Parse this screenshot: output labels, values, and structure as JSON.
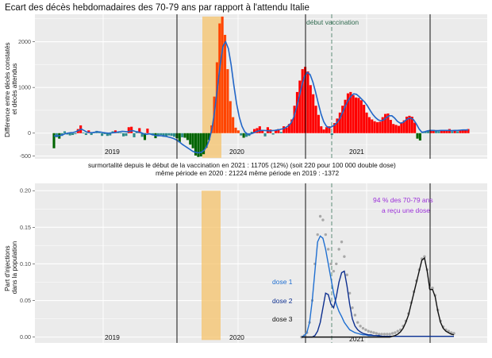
{
  "title": "Ecart des décès hebdomadaires des 70-79 ans par rapport à l'attendu Italie",
  "colors": {
    "panel_bg": "#ebebeb",
    "grid": "#ffffff",
    "bar_pos": "#ff0000",
    "bar_pos_2020": "#ff4500",
    "bar_neg": "#006400",
    "bar_small": "#2e8b8b",
    "smooth": "#2166c8",
    "highlight": "#f5c36b",
    "vacc_line": "#5f8c78",
    "vacc_text": "#2f6a4f",
    "dose1": "#1f6fd1",
    "dose2": "#0d2f8f",
    "dose3": "#111111",
    "total_dots": "#a8a8a8",
    "pct_text": "#9b30d9"
  },
  "chart_data": [
    {
      "type": "bar",
      "ylabel": "Différence entre décès constatés\net décès attendus",
      "ylim": [
        -560,
        2600
      ],
      "yticks": [
        -500,
        0,
        1000,
        2000
      ],
      "ytick_labels": [
        "-500",
        "0",
        "1000",
        "2000"
      ],
      "year_labels": [
        "2019",
        "2020",
        "2021"
      ],
      "vaccination_label": "début vaccination",
      "stats_line1": "surmortalité depuis le début de la vaccination en 2021 : 11705  (12%)           (soit 220 pour 100 000 double dose)",
      "stats_line2": "même période en 2020 : 21224             même période en 2019 : -1372",
      "weekly_values": [
        -330,
        -90,
        -120,
        -60,
        40,
        -30,
        -50,
        -40,
        -20,
        90,
        170,
        10,
        -40,
        60,
        -40,
        30,
        50,
        30,
        -60,
        -20,
        -60,
        -50,
        40,
        60,
        30,
        10,
        -70,
        -60,
        130,
        140,
        -90,
        40,
        110,
        -80,
        -150,
        100,
        -20,
        -50,
        -110,
        -60,
        -40,
        -80,
        -70,
        -50,
        -60,
        -80,
        -110,
        -200,
        -90,
        -100,
        -150,
        -250,
        -330,
        -490,
        -520,
        -510,
        -460,
        -320,
        -150,
        170,
        800,
        1550,
        2400,
        2550,
        2150,
        1400,
        700,
        350,
        120,
        60,
        -50,
        -100,
        -80,
        -60,
        30,
        90,
        110,
        150,
        60,
        -70,
        130,
        80,
        -30,
        70,
        90,
        30,
        150,
        120,
        200,
        300,
        600,
        900,
        1150,
        1400,
        1450,
        1350,
        1050,
        850,
        600,
        400,
        150,
        80,
        130,
        150,
        -40,
        220,
        320,
        450,
        600,
        730,
        870,
        900,
        830,
        780,
        770,
        720,
        620,
        450,
        350,
        300,
        260,
        240,
        250,
        350,
        420,
        430,
        290,
        200,
        180,
        160,
        230,
        280,
        360,
        380,
        360,
        230,
        -120,
        -160,
        30,
        40,
        50,
        60,
        70,
        50,
        40,
        60,
        70,
        60,
        90,
        40,
        60,
        40,
        70,
        80,
        60,
        90
      ],
      "smooth_values": [
        -60,
        -60,
        -55,
        -40,
        -15,
        0,
        10,
        15,
        30,
        60,
        90,
        60,
        25,
        15,
        10,
        20,
        30,
        25,
        15,
        5,
        0,
        5,
        10,
        20,
        30,
        40,
        35,
        30,
        45,
        55,
        35,
        25,
        10,
        -15,
        -25,
        -15,
        -30,
        -45,
        -55,
        -55,
        -60,
        -70,
        -85,
        -100,
        -120,
        -150,
        -190,
        -240,
        -280,
        -320,
        -360,
        -400,
        -420,
        -430,
        -420,
        -380,
        -300,
        -150,
        100,
        500,
        1000,
        1500,
        1900,
        2000,
        1850,
        1500,
        1050,
        650,
        350,
        150,
        30,
        -20,
        -20,
        0,
        25,
        50,
        60,
        60,
        55,
        50,
        55,
        60,
        70,
        80,
        95,
        120,
        160,
        220,
        350,
        550,
        800,
        1050,
        1250,
        1330,
        1280,
        1120,
        900,
        650,
        420,
        250,
        150,
        120,
        140,
        180,
        240,
        330,
        460,
        600,
        720,
        810,
        860,
        850,
        800,
        740,
        680,
        600,
        500,
        410,
        340,
        290,
        270,
        290,
        340,
        380,
        380,
        330,
        260,
        220,
        230,
        280,
        320,
        330,
        290,
        200,
        90,
        20,
        30,
        50,
        60,
        60,
        55,
        55,
        60,
        60,
        60,
        60,
        55,
        60,
        60,
        65,
        70,
        70,
        70
      ]
    },
    {
      "type": "line",
      "ylabel": "Part d'injections\ndans la population",
      "ylim": [
        -0.008,
        0.21
      ],
      "yticks": [
        0,
        0.05,
        0.1,
        0.15,
        0.2
      ],
      "ytick_labels": [
        "0.00",
        "0.05",
        "0.10",
        "0.15",
        "0.20"
      ],
      "year_labels": [
        "2019",
        "2020",
        "2021"
      ],
      "percent_note_line1": "94 % des 70-79 ans",
      "percent_note_line2": "a reçu une dose",
      "series": [
        {
          "name": "dose 1",
          "color_key": "dose1",
          "values": [
            0,
            0.002,
            0.006,
            0.02,
            0.05,
            0.09,
            0.13,
            0.138,
            0.135,
            0.12,
            0.1,
            0.08,
            0.06,
            0.045,
            0.035,
            0.028,
            0.02,
            0.015,
            0.01,
            0.008,
            0.006,
            0.005,
            0.004,
            0.003,
            0.003,
            0.002,
            0.002,
            0.002,
            0.002,
            0.001,
            0.001,
            0.001,
            0.001,
            0.001,
            0.001,
            0.001,
            0.001,
            0.001,
            0.001,
            0.001,
            0.001,
            0.001,
            0.001,
            0.001,
            0.001,
            0.001,
            0.001,
            0.001,
            0.001,
            0.001,
            0.001,
            0.001,
            0.001,
            0.001,
            0.001,
            0.001,
            0.001,
            0.001
          ]
        },
        {
          "name": "dose 2",
          "color_key": "dose2",
          "values": [
            0,
            0,
            0,
            0,
            0,
            0.002,
            0.008,
            0.02,
            0.04,
            0.06,
            0.058,
            0.045,
            0.04,
            0.055,
            0.075,
            0.088,
            0.09,
            0.07,
            0.045,
            0.025,
            0.015,
            0.01,
            0.007,
            0.005,
            0.004,
            0.003,
            0.003,
            0.002,
            0.002,
            0.002,
            0.001,
            0.001,
            0.001,
            0.001,
            0.001,
            0.001,
            0.001,
            0.001,
            0.001,
            0.001,
            0.001,
            0.001,
            0.001,
            0.001,
            0.001,
            0.001,
            0.001,
            0.001,
            0.001,
            0.001,
            0.001,
            0.001,
            0.001,
            0.001,
            0.001,
            0.001,
            0.001,
            0.001
          ]
        },
        {
          "name": "dose 3",
          "color_key": "dose3",
          "values": [
            0,
            0,
            0,
            0,
            0,
            0,
            0,
            0,
            0,
            0,
            0,
            0,
            0,
            0,
            0,
            0,
            0,
            0,
            0,
            0,
            0,
            0,
            0,
            0,
            0,
            0,
            0,
            0,
            0,
            0,
            0,
            0,
            0,
            0,
            0.001,
            0.002,
            0.004,
            0.007,
            0.012,
            0.02,
            0.03,
            0.045,
            0.06,
            0.075,
            0.09,
            0.105,
            0.108,
            0.09,
            0.065,
            0.065,
            0.055,
            0.035,
            0.02,
            0.012,
            0.008,
            0.006,
            0.004,
            0.003
          ]
        },
        {
          "name": "",
          "color_key": "total_dots",
          "values": [
            0,
            0.002,
            0.006,
            0.02,
            0.05,
            0.1,
            0.14,
            0.165,
            0.16,
            0.14,
            0.12,
            0.1,
            0.09,
            0.1,
            0.12,
            0.13,
            0.11,
            0.085,
            0.06,
            0.04,
            0.03,
            0.02,
            0.015,
            0.012,
            0.01,
            0.008,
            0.007,
            0.006,
            0.005,
            0.004,
            0.004,
            0.004,
            0.004,
            0.004,
            0.005,
            0.006,
            0.008,
            0.01,
            0.015,
            0.022,
            0.032,
            0.047,
            0.062,
            0.077,
            0.092,
            0.107,
            0.11,
            0.092,
            0.067,
            0.067,
            0.057,
            0.037,
            0.022,
            0.014,
            0.01,
            0.008,
            0.006,
            0.005
          ]
        }
      ]
    }
  ]
}
